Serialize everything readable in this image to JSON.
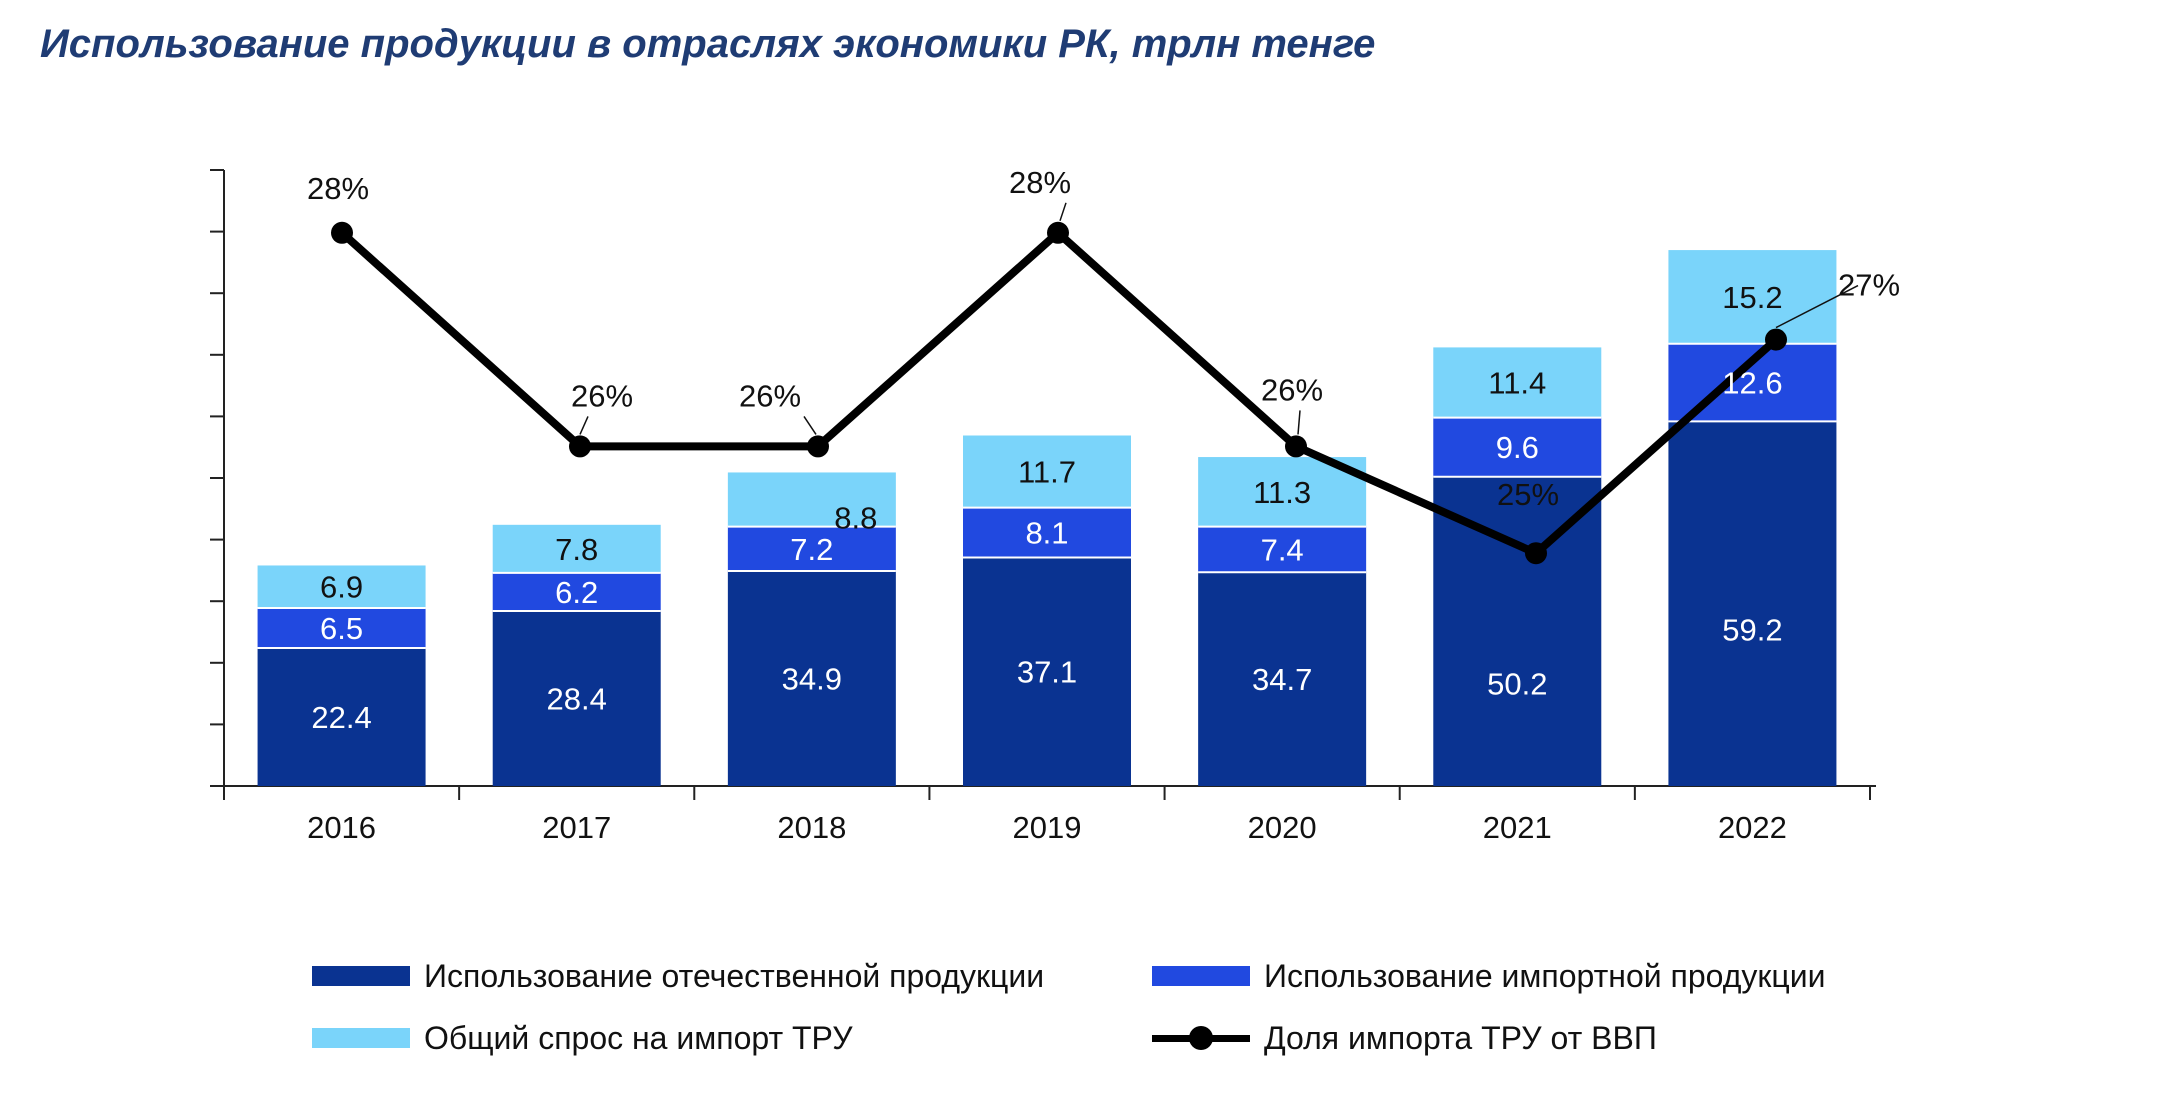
{
  "title": "Использование продукции в отраслях экономики РК, трлн тенге",
  "colors": {
    "domestic": "#0a3391",
    "import_use": "#2149e0",
    "import_demand": "#7ad4fa",
    "share_line": "#000000",
    "title": "#1f3c74"
  },
  "chart_data": {
    "type": "bar",
    "stacked": true,
    "categories": [
      "2016",
      "2017",
      "2018",
      "2019",
      "2020",
      "2021",
      "2022"
    ],
    "series": [
      {
        "name": "Использование отечественной продукции",
        "values": [
          22.4,
          28.4,
          34.9,
          37.1,
          34.7,
          50.2,
          59.2
        ],
        "labels": [
          "22.4",
          "28.4",
          "34.9",
          "37.1",
          "34.7",
          "50.2",
          "59.2"
        ]
      },
      {
        "name": "Использование импортной продукции",
        "values": [
          6.5,
          6.2,
          7.2,
          8.1,
          7.4,
          9.6,
          12.6
        ],
        "labels": [
          "6.5",
          "6.2",
          "7.2",
          "8.1",
          "7.4",
          "9.6",
          "12.6"
        ]
      },
      {
        "name": "Общий спрос на импорт ТРУ",
        "values": [
          6.9,
          7.8,
          8.8,
          11.7,
          11.3,
          11.4,
          15.2
        ],
        "labels": [
          "6.9",
          "7.8",
          "8.8",
          "11.7",
          "11.3",
          "11.4",
          "15.2"
        ]
      }
    ],
    "line_series": {
      "name": "Доля импорта ТРУ от ВВП",
      "type": "line",
      "values": [
        28,
        26,
        26,
        28,
        26,
        25,
        27
      ],
      "labels": [
        "28%",
        "26%",
        "26%",
        "28%",
        "26%",
        "25%",
        "27%"
      ],
      "range": [
        24,
        29
      ]
    },
    "ylim": [
      0,
      100
    ],
    "y_tick_step": 10,
    "y_tick_labels_shown": false,
    "xlabel": "",
    "ylabel": "",
    "grid": false,
    "legend_position": "bottom"
  }
}
